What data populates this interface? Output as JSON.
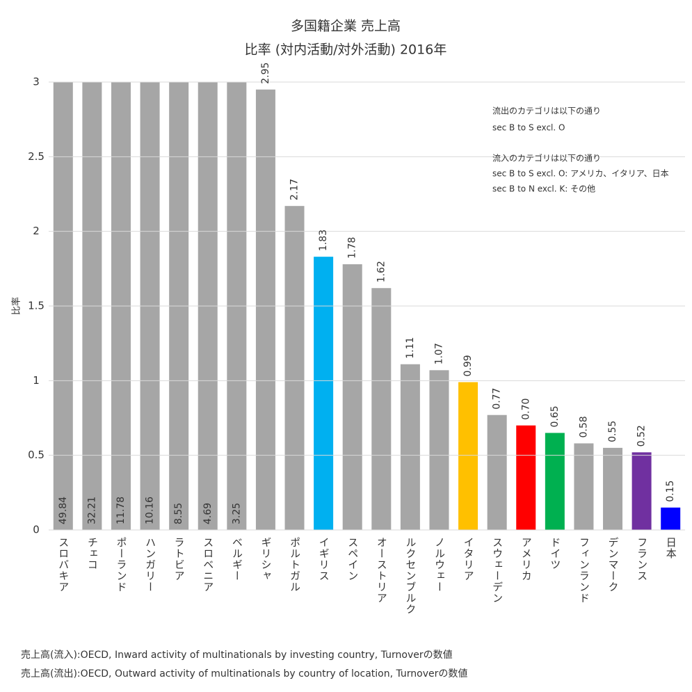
{
  "chart_data": {
    "type": "bar",
    "title": "多国籍企業 売上高",
    "subtitle": "比率 (対内活動/対外活動) 2016年",
    "y_label": "比率",
    "categories": [
      "スロバキア",
      "チェコ",
      "ポーランド",
      "ハンガリー",
      "ラトビア",
      "スロベニア",
      "ベルギー",
      "ギリシャ",
      "ポルトガル",
      "イギリス",
      "スペイン",
      "オーストリア",
      "ルクセンブルク",
      "ノルウェー",
      "イタリア",
      "スウェーデン",
      "アメリカ",
      "ドイツ",
      "フィンランド",
      "デンマーク",
      "フランス",
      "日本"
    ],
    "values": [
      49.84,
      32.21,
      11.78,
      10.16,
      8.55,
      4.69,
      3.25,
      2.95,
      2.17,
      1.83,
      1.78,
      1.62,
      1.11,
      1.07,
      0.99,
      0.77,
      0.7,
      0.65,
      0.58,
      0.55,
      0.52,
      0.15
    ],
    "value_labels": [
      "49.84",
      "32.21",
      "11.78",
      "10.16",
      "8.55",
      "4.69",
      "3.25",
      "2.95",
      "2.17",
      "1.83",
      "1.78",
      "1.62",
      "1.11",
      "1.07",
      "0.99",
      "0.77",
      "0.70",
      "0.65",
      "0.58",
      "0.55",
      "0.52",
      "0.15"
    ],
    "colors": [
      "#a6a6a6",
      "#a6a6a6",
      "#a6a6a6",
      "#a6a6a6",
      "#a6a6a6",
      "#a6a6a6",
      "#a6a6a6",
      "#a6a6a6",
      "#a6a6a6",
      "#00b0f0",
      "#a6a6a6",
      "#a6a6a6",
      "#a6a6a6",
      "#a6a6a6",
      "#ffc000",
      "#a6a6a6",
      "#ff0000",
      "#00b050",
      "#a6a6a6",
      "#a6a6a6",
      "#7030a0",
      "#0000ff"
    ],
    "ylim": [
      0,
      3
    ],
    "yticks": [
      0,
      0.5,
      1,
      1.5,
      2,
      2.5,
      3
    ],
    "grid": true,
    "annotations": [
      "流出のカテゴリは以下の通り",
      "sec B to S excl. O",
      "流入のカテゴリは以下の通り",
      "sec B to S excl. O: アメリカ、イタリア、日本",
      "sec B to N excl. K: その他"
    ],
    "notes": [
      "売上高(流入):OECD, Inward activity of multinationals by investing country, Turnoverの数値",
      "売上高(流出):OECD, Outward activity of multinationals by country of location, Turnoverの数値"
    ]
  }
}
